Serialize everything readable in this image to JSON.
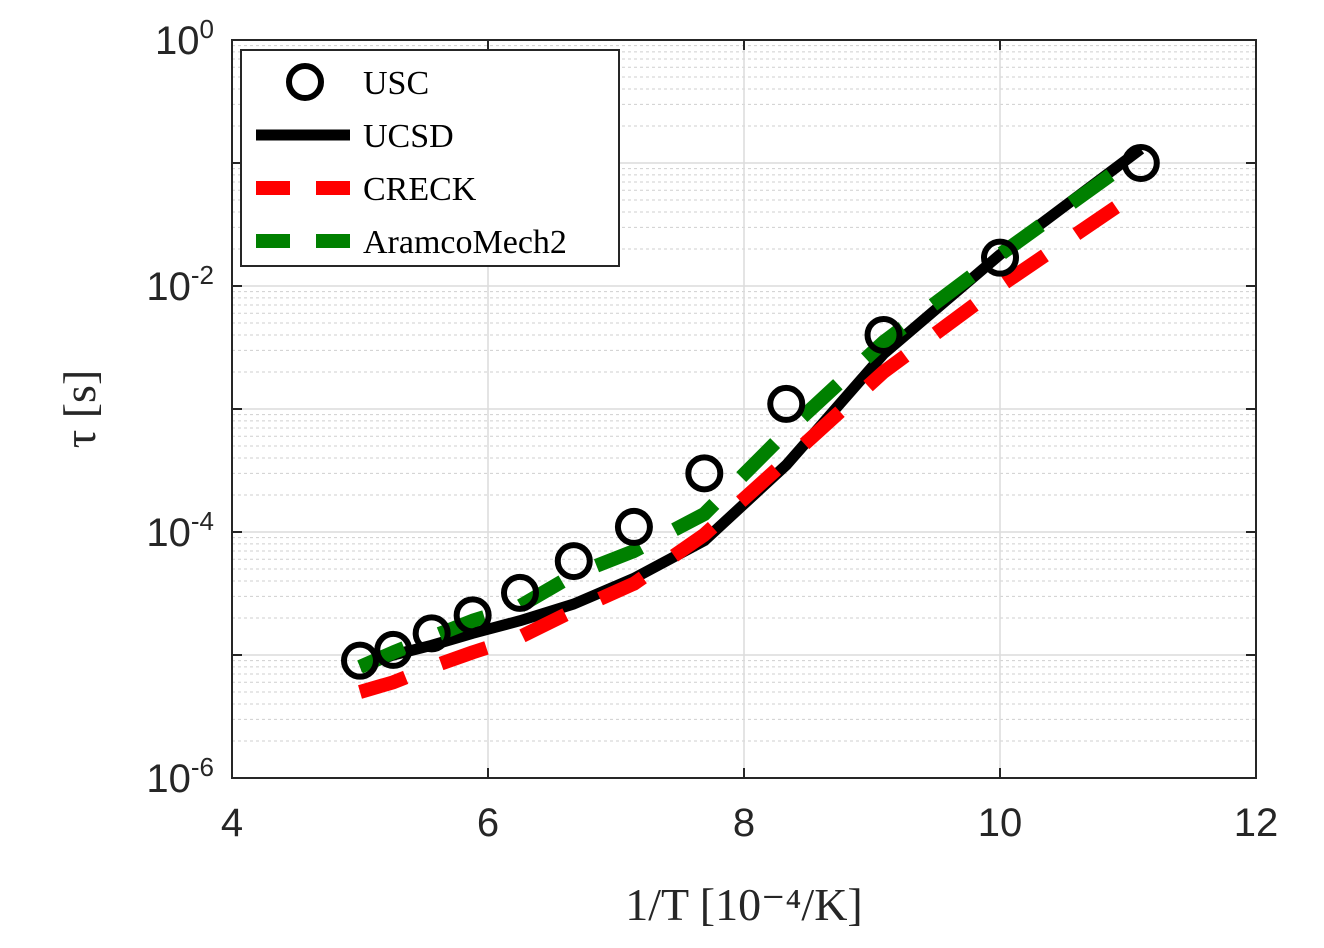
{
  "chart_data": {
    "type": "line",
    "title": "",
    "xlabel": "1/T [10⁻⁴/K]",
    "ylabel": "τ [s]",
    "x_scale": "linear",
    "y_scale": "log",
    "xlim": [
      4,
      12
    ],
    "ylim": [
      1e-06,
      1
    ],
    "x_ticks": [
      4,
      6,
      8,
      10,
      12
    ],
    "y_ticks": [
      {
        "base": "10",
        "exp": "-6",
        "value": 1e-06
      },
      {
        "base": "10",
        "exp": "-4",
        "value": 0.0001
      },
      {
        "base": "10",
        "exp": "-2",
        "value": 0.01
      },
      {
        "base": "10",
        "exp": "0",
        "value": 1
      }
    ],
    "grid": true,
    "minor_grid": true,
    "legend_position": "top-left",
    "series": [
      {
        "name": "USC",
        "style": "markers",
        "marker": "circle",
        "color": "#000000",
        "x": [
          5.0,
          5.26,
          5.56,
          5.88,
          6.25,
          6.67,
          7.14,
          7.69,
          8.33,
          9.09,
          10.0,
          11.1
        ],
        "y": [
          9e-06,
          1.1e-05,
          1.5e-05,
          2.1e-05,
          3.2e-05,
          5.8e-05,
          0.00011,
          0.0003,
          0.0011,
          0.004,
          0.017,
          0.1
        ]
      },
      {
        "name": "UCSD",
        "style": "solid",
        "color": "#000000",
        "x": [
          5.0,
          5.26,
          5.56,
          5.88,
          6.25,
          6.67,
          7.14,
          7.69,
          8.33,
          9.09,
          10.0,
          11.1
        ],
        "y": [
          8e-06,
          1e-05,
          1.2e-05,
          1.5e-05,
          1.9e-05,
          2.6e-05,
          4.2e-05,
          8.5e-05,
          0.00035,
          0.0028,
          0.018,
          0.13
        ]
      },
      {
        "name": "CRECK",
        "style": "dashed",
        "color": "#ff0000",
        "x": [
          5.0,
          5.26,
          5.56,
          5.88,
          6.25,
          6.67,
          7.14,
          7.69,
          8.33,
          9.09,
          10.0,
          11.1
        ],
        "y": [
          5e-06,
          6e-06,
          8e-06,
          1.05e-05,
          1.4e-05,
          2.3e-05,
          3.8e-05,
          9.5e-05,
          0.00038,
          0.002,
          0.01,
          0.06
        ]
      },
      {
        "name": "AramcoMech2",
        "style": "dashed",
        "color": "#008000",
        "x": [
          5.0,
          5.26,
          5.56,
          5.88,
          6.25,
          6.67,
          7.14,
          7.69,
          8.33,
          9.09,
          10.0,
          11.1
        ],
        "y": [
          8e-06,
          1.05e-05,
          1.4e-05,
          1.9e-05,
          2.5e-05,
          4.5e-05,
          7e-05,
          0.00014,
          0.00065,
          0.0035,
          0.018,
          0.12
        ]
      }
    ]
  }
}
